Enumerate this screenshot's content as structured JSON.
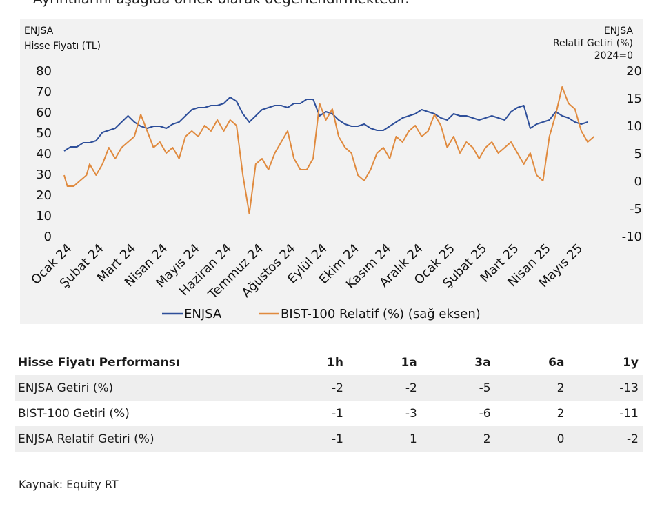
{
  "intro_text": "Ayrıntılarını aşağıda örnek olarak değerlendirmektedir.",
  "chart_data": {
    "type": "line",
    "left_axis_title": [
      "ENJSA",
      "Hisse Fiyatı (TL)"
    ],
    "right_axis_title": [
      "ENJSA",
      "Relatif Getiri (%)",
      "2024=0"
    ],
    "left_ticks": [
      "80",
      "70",
      "60",
      "50",
      "40",
      "30",
      "20",
      "10",
      "0"
    ],
    "right_ticks": [
      "20",
      "15",
      "10",
      "5",
      "0",
      "-5",
      "-10"
    ],
    "ylim_left": [
      0,
      80
    ],
    "ylim_right": [
      -10,
      20
    ],
    "x_labels": [
      "Ocak 24",
      "Şubat 24",
      "Mart 24",
      "Nisan 24",
      "Mayıs 24",
      "Haziran 24",
      "Temmuz 24",
      "Ağustos 24",
      "Eylül 24",
      "Ekim 24",
      "Kasım 24",
      "Aralık 24",
      "Ocak 25",
      "Şubat 25",
      "Mart 25",
      "Nisan 25",
      "Mayıs 25"
    ],
    "x_range_months": [
      0,
      17
    ],
    "series": [
      {
        "name": "ENJSA",
        "axis": "left",
        "color": "#2e4f9a",
        "points": [
          [
            0,
            41
          ],
          [
            0.2,
            43
          ],
          [
            0.4,
            43
          ],
          [
            0.6,
            45
          ],
          [
            0.8,
            45
          ],
          [
            1.0,
            46
          ],
          [
            1.2,
            50
          ],
          [
            1.4,
            51
          ],
          [
            1.6,
            52
          ],
          [
            1.8,
            55
          ],
          [
            2.0,
            58
          ],
          [
            2.2,
            55
          ],
          [
            2.4,
            53
          ],
          [
            2.6,
            52
          ],
          [
            2.8,
            53
          ],
          [
            3.0,
            53
          ],
          [
            3.2,
            52
          ],
          [
            3.4,
            54
          ],
          [
            3.6,
            55
          ],
          [
            3.8,
            58
          ],
          [
            4.0,
            61
          ],
          [
            4.2,
            62
          ],
          [
            4.4,
            62
          ],
          [
            4.6,
            63
          ],
          [
            4.8,
            63
          ],
          [
            5.0,
            64
          ],
          [
            5.2,
            67
          ],
          [
            5.4,
            65
          ],
          [
            5.6,
            59
          ],
          [
            5.8,
            55
          ],
          [
            6.0,
            58
          ],
          [
            6.2,
            61
          ],
          [
            6.4,
            62
          ],
          [
            6.6,
            63
          ],
          [
            6.8,
            63
          ],
          [
            7.0,
            62
          ],
          [
            7.2,
            64
          ],
          [
            7.4,
            64
          ],
          [
            7.6,
            66
          ],
          [
            7.8,
            66
          ],
          [
            8.0,
            58
          ],
          [
            8.2,
            60
          ],
          [
            8.4,
            59
          ],
          [
            8.6,
            56
          ],
          [
            8.8,
            54
          ],
          [
            9.0,
            53
          ],
          [
            9.2,
            53
          ],
          [
            9.4,
            54
          ],
          [
            9.6,
            52
          ],
          [
            9.8,
            51
          ],
          [
            10.0,
            51
          ],
          [
            10.2,
            53
          ],
          [
            10.4,
            55
          ],
          [
            10.6,
            57
          ],
          [
            10.8,
            58
          ],
          [
            11.0,
            59
          ],
          [
            11.2,
            61
          ],
          [
            11.4,
            60
          ],
          [
            11.6,
            59
          ],
          [
            11.8,
            57
          ],
          [
            12.0,
            56
          ],
          [
            12.2,
            59
          ],
          [
            12.4,
            58
          ],
          [
            12.6,
            58
          ],
          [
            12.8,
            57
          ],
          [
            13.0,
            56
          ],
          [
            13.2,
            57
          ],
          [
            13.4,
            58
          ],
          [
            13.6,
            57
          ],
          [
            13.8,
            56
          ],
          [
            14.0,
            60
          ],
          [
            14.2,
            62
          ],
          [
            14.4,
            63
          ],
          [
            14.6,
            52
          ],
          [
            14.8,
            54
          ],
          [
            15.0,
            55
          ],
          [
            15.2,
            56
          ],
          [
            15.4,
            60
          ],
          [
            15.6,
            58
          ],
          [
            15.8,
            57
          ],
          [
            16.0,
            55
          ],
          [
            16.2,
            54
          ],
          [
            16.4,
            55
          ]
        ]
      },
      {
        "name": "BIST-100 Relatif (%) (sağ eksen)",
        "axis": "right",
        "color": "#e08a3e",
        "points": [
          [
            0,
            1
          ],
          [
            0.1,
            -1
          ],
          [
            0.3,
            -1
          ],
          [
            0.5,
            0
          ],
          [
            0.7,
            1
          ],
          [
            0.8,
            3
          ],
          [
            1.0,
            1
          ],
          [
            1.2,
            3
          ],
          [
            1.4,
            6
          ],
          [
            1.6,
            4
          ],
          [
            1.8,
            6
          ],
          [
            2.0,
            7
          ],
          [
            2.2,
            8
          ],
          [
            2.4,
            12
          ],
          [
            2.6,
            9
          ],
          [
            2.8,
            6
          ],
          [
            3.0,
            7
          ],
          [
            3.2,
            5
          ],
          [
            3.4,
            6
          ],
          [
            3.6,
            4
          ],
          [
            3.8,
            8
          ],
          [
            4.0,
            9
          ],
          [
            4.2,
            8
          ],
          [
            4.4,
            10
          ],
          [
            4.6,
            9
          ],
          [
            4.8,
            11
          ],
          [
            5.0,
            9
          ],
          [
            5.2,
            11
          ],
          [
            5.4,
            10
          ],
          [
            5.6,
            1
          ],
          [
            5.8,
            -6
          ],
          [
            6.0,
            3
          ],
          [
            6.2,
            4
          ],
          [
            6.4,
            2
          ],
          [
            6.6,
            5
          ],
          [
            6.8,
            7
          ],
          [
            7.0,
            9
          ],
          [
            7.2,
            4
          ],
          [
            7.4,
            2
          ],
          [
            7.6,
            2
          ],
          [
            7.8,
            4
          ],
          [
            8.0,
            14
          ],
          [
            8.2,
            11
          ],
          [
            8.4,
            13
          ],
          [
            8.6,
            8
          ],
          [
            8.8,
            6
          ],
          [
            9.0,
            5
          ],
          [
            9.2,
            1
          ],
          [
            9.4,
            0
          ],
          [
            9.6,
            2
          ],
          [
            9.8,
            5
          ],
          [
            10.0,
            6
          ],
          [
            10.2,
            4
          ],
          [
            10.4,
            8
          ],
          [
            10.6,
            7
          ],
          [
            10.8,
            9
          ],
          [
            11.0,
            10
          ],
          [
            11.2,
            8
          ],
          [
            11.4,
            9
          ],
          [
            11.6,
            12
          ],
          [
            11.8,
            10
          ],
          [
            12.0,
            6
          ],
          [
            12.2,
            8
          ],
          [
            12.4,
            5
          ],
          [
            12.6,
            7
          ],
          [
            12.8,
            6
          ],
          [
            13.0,
            4
          ],
          [
            13.2,
            6
          ],
          [
            13.4,
            7
          ],
          [
            13.6,
            5
          ],
          [
            13.8,
            6
          ],
          [
            14.0,
            7
          ],
          [
            14.2,
            5
          ],
          [
            14.4,
            3
          ],
          [
            14.6,
            5
          ],
          [
            14.8,
            1
          ],
          [
            15.0,
            0
          ],
          [
            15.2,
            8
          ],
          [
            15.4,
            12
          ],
          [
            15.6,
            17
          ],
          [
            15.8,
            14
          ],
          [
            16.0,
            13
          ],
          [
            16.2,
            9
          ],
          [
            16.4,
            7
          ],
          [
            16.6,
            8
          ]
        ]
      }
    ],
    "legend": "bottom"
  },
  "table": {
    "header": [
      "Hisse Fiyatı Performansı",
      "1h",
      "1a",
      "3a",
      "6a",
      "1y"
    ],
    "rows": [
      {
        "label": "ENJSA Getiri (%)",
        "values": [
          "-2",
          "-2",
          "-5",
          "2",
          "-13"
        ]
      },
      {
        "label": "BIST-100 Getiri (%)",
        "values": [
          "-1",
          "-3",
          "-6",
          "2",
          "-11"
        ]
      },
      {
        "label": "ENJSA Relatif Getiri (%)",
        "values": [
          "-1",
          "1",
          "2",
          "0",
          "-2"
        ]
      }
    ]
  },
  "source": "Kaynak: Equity RT"
}
